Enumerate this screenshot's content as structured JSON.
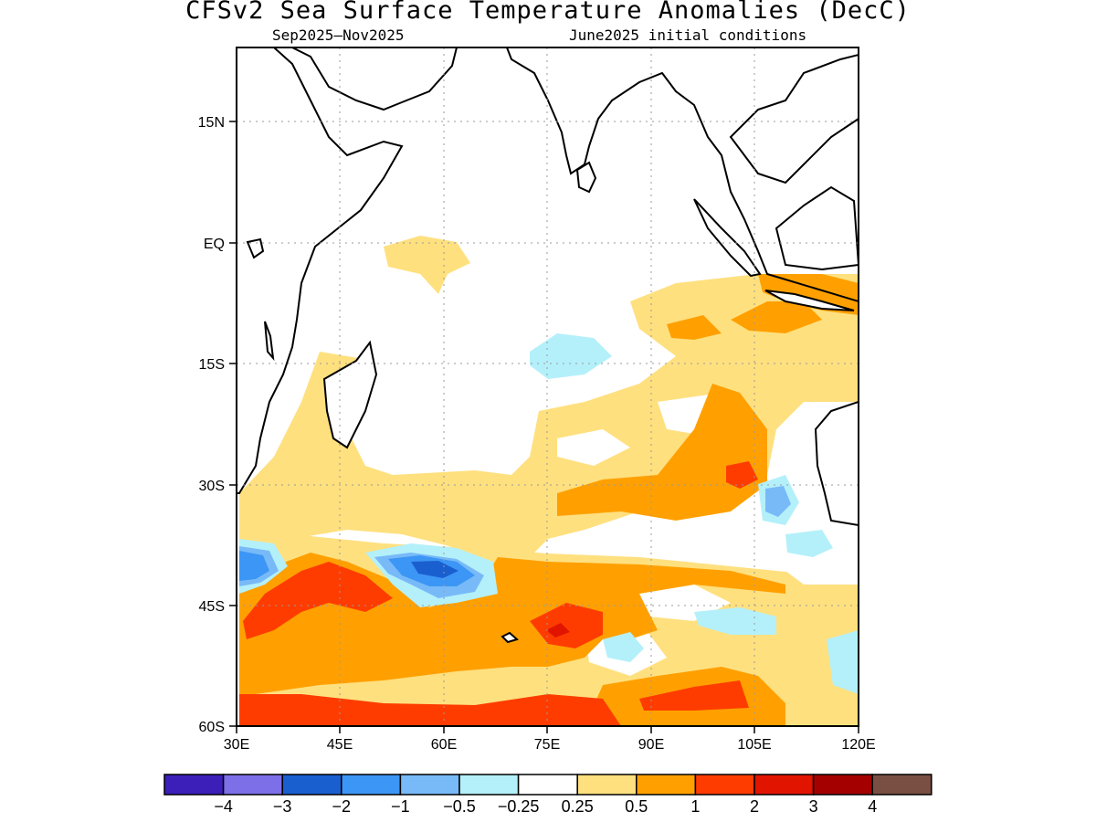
{
  "title": "CFSv2 Sea Surface Temperature Anomalies (DecC)",
  "subtitle_left": "Sep2025–Nov2025",
  "subtitle_right": "June2025 initial conditions",
  "lat_labels": [
    "15N",
    "EQ",
    "15S",
    "30S",
    "45S",
    "60S"
  ],
  "lon_labels": [
    "30E",
    "45E",
    "60E",
    "75E",
    "90E",
    "105E",
    "120E"
  ],
  "colorbar": {
    "colors": [
      "#3b1fb8",
      "#7d6fe8",
      "#1a5fd0",
      "#3c96f5",
      "#78baf8",
      "#b4f0fa",
      "#ffffff",
      "#ffe07f",
      "#ffa000",
      "#ff3c00",
      "#e11400",
      "#a50000",
      "#7a4f43"
    ],
    "labels": [
      "−4",
      "−3",
      "−2",
      "−1",
      "−0.5",
      "−0.25",
      "0.25",
      "0.5",
      "1",
      "2",
      "3",
      "4"
    ]
  }
}
